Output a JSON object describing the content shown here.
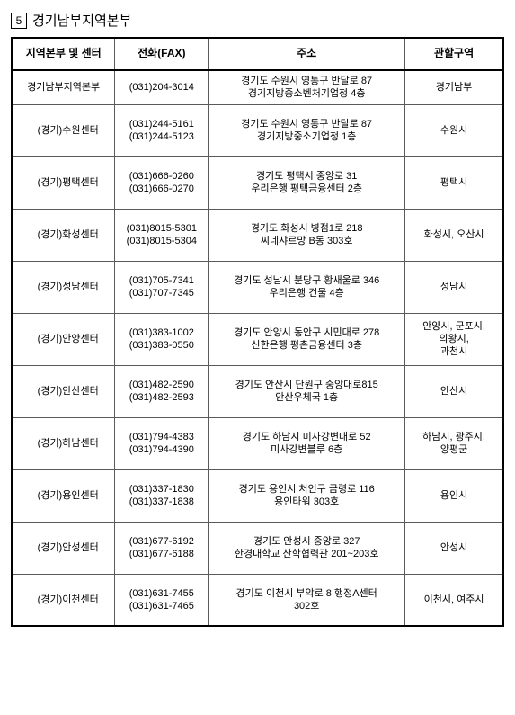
{
  "heading": {
    "number": "5",
    "title": "경기남부지역본부"
  },
  "table": {
    "headers": {
      "center": "지역본부 및 센터",
      "phone": "전화(FAX)",
      "address": "주소",
      "area": "관할구역"
    },
    "rows": [
      {
        "center": "경기남부지역본부",
        "phone1": "(031)204-3014",
        "phone2": "",
        "addr1": "경기도 수원시 영통구 반달로 87",
        "addr2": "경기지방중소벤처기업청 4층",
        "area": "경기남부",
        "indent": false,
        "firstRow": true
      },
      {
        "center": "(경기)수원센터",
        "phone1": "(031)244-5161",
        "phone2": "(031)244-5123",
        "addr1": "경기도 수원시 영통구 반달로 87",
        "addr2": "경기지방중소기업청 1층",
        "area": "수원시",
        "indent": true
      },
      {
        "center": "(경기)평택센터",
        "phone1": "(031)666-0260",
        "phone2": "(031)666-0270",
        "addr1": "경기도 평택시 중앙로 31",
        "addr2": "우리은행 평택금융센터 2층",
        "area": "평택시",
        "indent": true
      },
      {
        "center": "(경기)화성센터",
        "phone1": "(031)8015-5301",
        "phone2": "(031)8015-5304",
        "addr1": "경기도 화성시 병점1로 218",
        "addr2": "씨네샤르망 B동 303호",
        "area": "화성시, 오산시",
        "indent": true
      },
      {
        "center": "(경기)성남센터",
        "phone1": "(031)705-7341",
        "phone2": "(031)707-7345",
        "addr1": "경기도 성남시 분당구 황새울로 346",
        "addr2": "우리은행 건물 4층",
        "area": "성남시",
        "indent": true
      },
      {
        "center": "(경기)안양센터",
        "phone1": "(031)383-1002",
        "phone2": "(031)383-0550",
        "addr1": "경기도 안양시 동안구 시민대로 278",
        "addr2": "신한은행 평촌금융센터 3층",
        "area1": "안양시, 군포시,",
        "area2": "의왕시,",
        "area3": "과천시",
        "indent": true,
        "multiArea": true
      },
      {
        "center": "(경기)안산센터",
        "phone1": "(031)482-2590",
        "phone2": "(031)482-2593",
        "addr1": "경기도 안산시 단원구 중앙대로815",
        "addr2": "안산우체국 1층",
        "area": "안산시",
        "indent": true
      },
      {
        "center": "(경기)하남센터",
        "phone1": "(031)794-4383",
        "phone2": "(031)794-4390",
        "addr1": "경기도 하남시 미사강변대로 52",
        "addr2": "미사강변블루 6층",
        "area1": "하남시, 광주시,",
        "area2": "양평군",
        "indent": true,
        "twoArea": true
      },
      {
        "center": "(경기)용인센터",
        "phone1": "(031)337-1830",
        "phone2": "(031)337-1838",
        "addr1": "경기도 용인시 처인구 금령로 116",
        "addr2": "용인타워 303호",
        "area": "용인시",
        "indent": true
      },
      {
        "center": "(경기)안성센터",
        "phone1": "(031)677-6192",
        "phone2": "(031)677-6188",
        "addr1": "경기도 안성시 중앙로 327",
        "addr2": "한경대학교 산학협력관 201~203호",
        "area": "안성시",
        "indent": true
      },
      {
        "center": "(경기)이천센터",
        "phone1": "(031)631-7455",
        "phone2": "(031)631-7465",
        "addr1": "경기도 이천시 부악로 8 행정A센터",
        "addr2": "302호",
        "area": "이천시, 여주시",
        "indent": true
      }
    ]
  }
}
